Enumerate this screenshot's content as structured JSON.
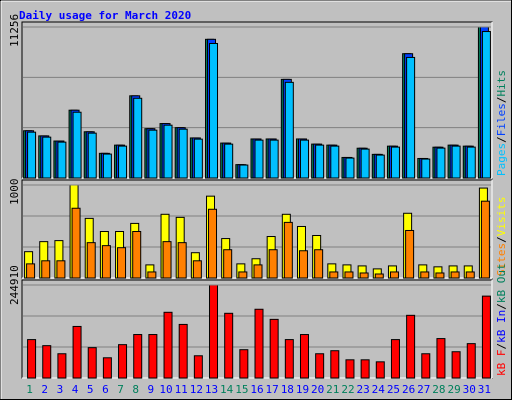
{
  "title": "Daily usage for March 2020",
  "legend_separator": "/",
  "categories": [
    "1",
    "2",
    "3",
    "4",
    "5",
    "6",
    "7",
    "8",
    "9",
    "10",
    "11",
    "12",
    "13",
    "14",
    "15",
    "16",
    "17",
    "18",
    "19",
    "20",
    "21",
    "22",
    "23",
    "24",
    "25",
    "26",
    "27",
    "28",
    "29",
    "30",
    "31"
  ],
  "category_colors": [
    "#00805c",
    "#0000ff",
    "#0000ff",
    "#0000ff",
    "#0000ff",
    "#0000ff",
    "#00805c",
    "#00805c",
    "#0000ff",
    "#0000ff",
    "#0000ff",
    "#0000ff",
    "#0000ff",
    "#00805c",
    "#00805c",
    "#0000ff",
    "#0000ff",
    "#0000ff",
    "#0000ff",
    "#0000ff",
    "#00805c",
    "#00805c",
    "#0000ff",
    "#0000ff",
    "#0000ff",
    "#0000ff",
    "#0000ff",
    "#00805c",
    "#00805c",
    "#0000ff",
    "#0000ff"
  ],
  "chart_data": [
    {
      "type": "bar",
      "ylim": [
        0,
        11256
      ],
      "yticks": [
        11256
      ],
      "series": [
        {
          "name": "Pages",
          "color": "#00c0ff",
          "values": [
            3416,
            3045,
            2674,
            4902,
            3343,
            1783,
            2377,
            5942,
            3565,
            3936,
            3639,
            2896,
            10027,
            2525,
            965,
            2823,
            2823,
            7130,
            2823,
            2451,
            2377,
            1485,
            2153,
            1708,
            2303,
            8987,
            1411,
            2228,
            2377,
            2303,
            10918
          ]
        },
        {
          "name": "Files",
          "color": "#0040ff",
          "values": [
            3522,
            3139,
            2757,
            5054,
            3446,
            1838,
            2450,
            6126,
            3675,
            4058,
            3752,
            2986,
            10337,
            2603,
            995,
            2910,
            2910,
            7351,
            2910,
            2527,
            2450,
            1531,
            2220,
            1761,
            2374,
            9265,
            1455,
            2297,
            2450,
            2374,
            11256
          ]
        },
        {
          "name": "Hits",
          "color": "#00805c",
          "values": [
            3522,
            3139,
            2757,
            5054,
            3446,
            1838,
            2450,
            6126,
            3675,
            4058,
            3752,
            2986,
            10337,
            2603,
            995,
            2910,
            2910,
            7351,
            2910,
            2527,
            2450,
            1531,
            2220,
            1761,
            2374,
            9265,
            1455,
            2297,
            2450,
            2374,
            11256
          ]
        }
      ]
    },
    {
      "type": "bar",
      "ylim": [
        0,
        1000
      ],
      "yticks": [
        1000
      ],
      "series": [
        {
          "name": "Sites",
          "color": "#ff8000",
          "values": [
            152,
            185,
            185,
            750,
            380,
            348,
            326,
            500,
            65,
            391,
            380,
            185,
            739,
            304,
            65,
            141,
            304,
            598,
            293,
            304,
            65,
            65,
            54,
            43,
            65,
            511,
            65,
            54,
            65,
            65,
            826
          ]
        },
        {
          "name": "Visits",
          "color": "#ffff00",
          "values": [
            283,
            391,
            402,
            1000,
            641,
            500,
            500,
            587,
            141,
            685,
            652,
            272,
            880,
            424,
            152,
            207,
            446,
            685,
            554,
            457,
            152,
            141,
            130,
            98,
            130,
            696,
            141,
            120,
            130,
            130,
            967
          ]
        }
      ]
    },
    {
      "type": "bar",
      "ylim": [
        0,
        244910
      ],
      "yticks": [
        244910
      ],
      "series": [
        {
          "name": "kB F",
          "color": "#ff0000",
          "values": [
            101158,
            85186,
            63890,
            135762,
            79860,
            53240,
            87846,
            114466,
            114466,
            173030,
            141087,
            58564,
            244910,
            170368,
            74536,
            181016,
            154396,
            101158,
            114466,
            63890,
            71874,
            47916,
            47916,
            42592,
            101158,
            165044,
            63890,
            103818,
            69212,
            90508,
            215622
          ]
        },
        {
          "name": "kB In",
          "color": "#0000ff",
          "values": [
            0,
            0,
            0,
            0,
            0,
            0,
            0,
            0,
            0,
            0,
            0,
            0,
            0,
            0,
            0,
            0,
            0,
            0,
            0,
            0,
            0,
            0,
            0,
            0,
            0,
            0,
            0,
            0,
            0,
            0,
            0
          ]
        },
        {
          "name": "kB Out",
          "color": "#00805c",
          "values": [
            0,
            0,
            0,
            0,
            0,
            0,
            0,
            0,
            0,
            0,
            0,
            0,
            0,
            0,
            0,
            0,
            0,
            0,
            0,
            0,
            0,
            0,
            0,
            0,
            0,
            0,
            0,
            0,
            0,
            0,
            0
          ]
        }
      ]
    }
  ]
}
